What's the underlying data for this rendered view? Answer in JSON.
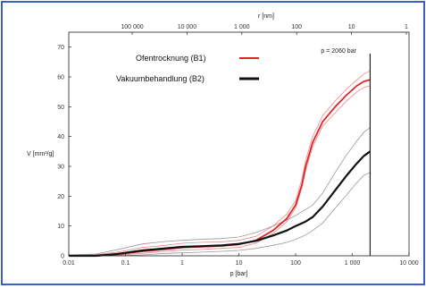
{
  "colors": {
    "frame": "#3a5fc8",
    "s1": "#e0252a",
    "s2": "#111111",
    "band": "#9a9a9a"
  },
  "chart_data": {
    "type": "line",
    "title": "",
    "xlabel": "p [bar]",
    "ylabel": "V [mm³/g]",
    "x2label": "r [nm]",
    "xscale": "log",
    "xlim": [
      0.01,
      10000
    ],
    "ylim": [
      0,
      75
    ],
    "x_ticks": [
      "0.01",
      "0.1",
      "1",
      "10",
      "100",
      "1 000",
      "10 000"
    ],
    "y_ticks": [
      "0",
      "10",
      "20",
      "30",
      "40",
      "50",
      "60",
      "70"
    ],
    "x2_ticks": [
      "100 000",
      "10 000",
      "1 000",
      "100",
      "10",
      "1"
    ],
    "grid": false,
    "legend_position": "top-center",
    "annotation": {
      "label": "p = 2060 bar",
      "x": 2060
    },
    "series": [
      {
        "name": "Ofentrocknung (B1)",
        "color": "#e0252a",
        "x": [
          0.01,
          0.03,
          0.07,
          0.2,
          0.5,
          1,
          2,
          5,
          10,
          20,
          40,
          70,
          100,
          130,
          150,
          200,
          300,
          500,
          800,
          1200,
          1600,
          2060
        ],
        "y": [
          0,
          0,
          0.5,
          1.5,
          2.2,
          2.8,
          3.0,
          3.3,
          3.8,
          5.2,
          8.5,
          12.5,
          17,
          24,
          30,
          38,
          45,
          50,
          54,
          57,
          58.5,
          59
        ],
        "upper": [
          0.2,
          0.4,
          1.2,
          2.8,
          3.5,
          4.2,
          4.5,
          4.7,
          5.2,
          6.5,
          10,
          14,
          18.5,
          26,
          32,
          40,
          47,
          52,
          56,
          59,
          61,
          62
        ],
        "lower": [
          0,
          0,
          0.2,
          0.8,
          1.5,
          1.9,
          2.1,
          2.5,
          2.8,
          4.2,
          7.5,
          11.5,
          16,
          23,
          28.5,
          36.5,
          43.5,
          48,
          52,
          55,
          56.5,
          57
        ]
      },
      {
        "name": "Vakuumbehandlung (B2)",
        "color": "#111111",
        "x": [
          0.01,
          0.03,
          0.07,
          0.2,
          0.5,
          1,
          2,
          5,
          10,
          20,
          40,
          70,
          100,
          150,
          200,
          300,
          500,
          800,
          1200,
          1600,
          2060
        ],
        "y": [
          0,
          0,
          0.6,
          1.8,
          2.5,
          3.0,
          3.2,
          3.5,
          4.0,
          5.0,
          6.8,
          8.5,
          10,
          11.5,
          13,
          16.5,
          22,
          27,
          31,
          33.5,
          35
        ],
        "upper": [
          0.3,
          0.6,
          2.0,
          4.0,
          4.8,
          5.2,
          5.5,
          5.8,
          6.3,
          7.8,
          10,
          12,
          13.5,
          15.5,
          17,
          21,
          28,
          34,
          38.5,
          41.5,
          43
        ],
        "lower": [
          0,
          0,
          0,
          0.3,
          0.8,
          1.0,
          1.2,
          1.5,
          1.8,
          2.5,
          3.5,
          4.5,
          5.5,
          7,
          8.5,
          11,
          16,
          20.5,
          24.5,
          27,
          28
        ]
      }
    ]
  }
}
